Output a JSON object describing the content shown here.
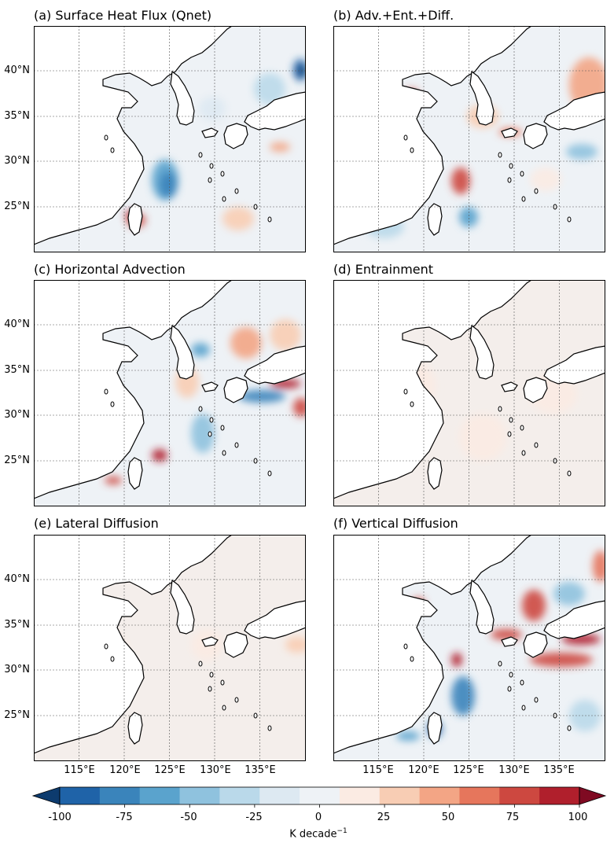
{
  "panels": [
    {
      "id": "a",
      "title": "(a) Surface Heat Flux (Qnet)"
    },
    {
      "id": "b",
      "title": "(b) Adv.+Ent.+Diff."
    },
    {
      "id": "c",
      "title": "(c) Horizontal Advection"
    },
    {
      "id": "d",
      "title": "(d) Entrainment"
    },
    {
      "id": "e",
      "title": "(e) Lateral Diffusion"
    },
    {
      "id": "f",
      "title": "(f) Vertical Diffusion"
    }
  ],
  "lat_labels": [
    "40°N",
    "35°N",
    "30°N",
    "25°N"
  ],
  "lon_labels": [
    "115°E",
    "120°E",
    "125°E",
    "130°E",
    "135°E"
  ],
  "colorbar": {
    "ticks": [
      "-100",
      "-75",
      "-50",
      "-25",
      "0",
      "25",
      "50",
      "75",
      "100"
    ],
    "unit_text": "K decade",
    "unit_exp": "−1",
    "colors": [
      "#0d3b6e",
      "#1f63a8",
      "#3a84bb",
      "#5aa3cd",
      "#8fc2de",
      "#bad9ea",
      "#dde9f2",
      "#eef2f6",
      "#fbebe3",
      "#f8cdb4",
      "#f3a585",
      "#e6765c",
      "#cd4840",
      "#b01f2c",
      "#7f0a22"
    ]
  }
}
